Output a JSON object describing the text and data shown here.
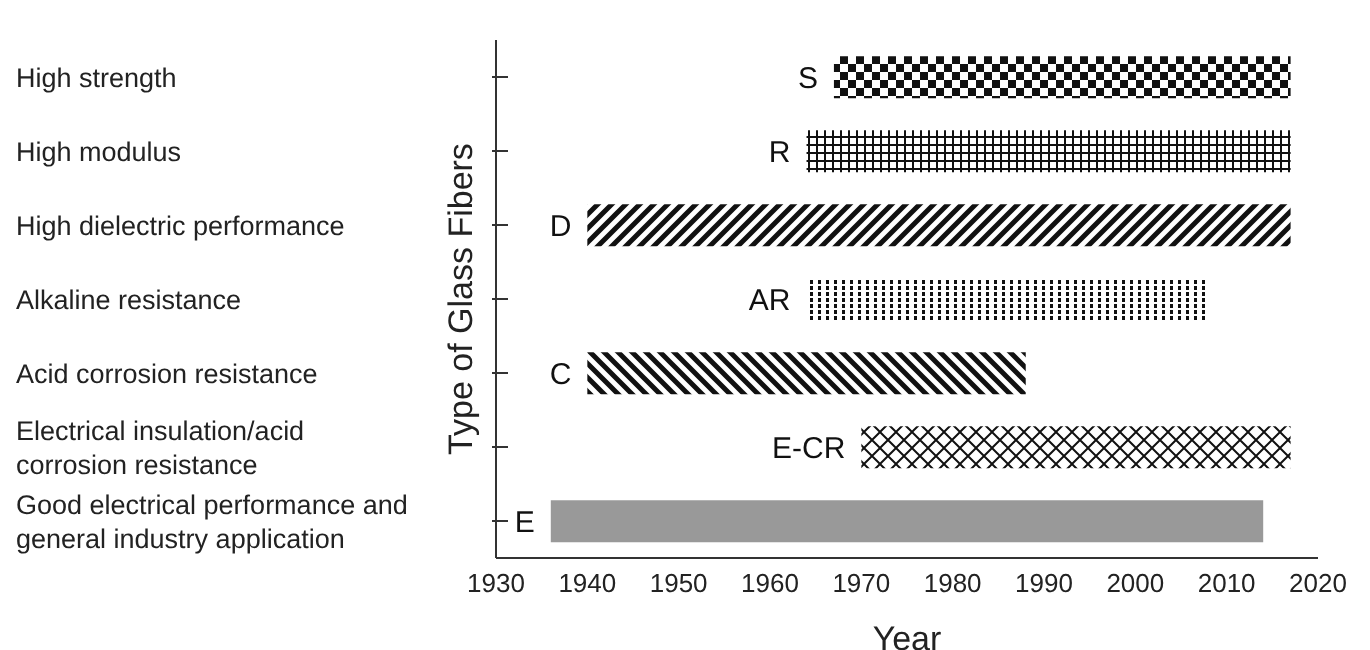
{
  "chart_data": {
    "type": "bar",
    "orientation": "horizontal",
    "xlabel": "Year",
    "ylabel": "Type of Glass Fibers",
    "categories": [
      "High strength",
      "High modulus",
      "High dielectric performance",
      "Alkaline resistance",
      "Acid corrosion resistance",
      "Electrical insulation/acid corrosion resistance",
      "Good electrical performance and general industry application"
    ],
    "base": [
      1967,
      1964,
      1940,
      1964,
      1940,
      1970,
      1936
    ],
    "values": [
      50,
      53,
      77,
      44,
      48,
      47,
      78
    ],
    "colors": [
      "#111111",
      "#111111",
      "#111111",
      "#111111",
      "#111111",
      "#111111",
      "#999999"
    ],
    "xlim": [
      1930,
      2020
    ],
    "xticks": [
      1930,
      1940,
      1950,
      1960,
      1970,
      1980,
      1990,
      2000,
      2010,
      2020
    ],
    "annotations": [
      {
        "text": "S",
        "x": 1967,
        "y": "High strength"
      },
      {
        "text": "R",
        "x": 1964,
        "y": "High modulus"
      },
      {
        "text": "D",
        "x": 1940,
        "y": "High dielectric performance"
      },
      {
        "text": "AR",
        "x": 1964,
        "y": "Alkaline resistance"
      },
      {
        "text": "C",
        "x": 1940,
        "y": "Acid corrosion resistance"
      },
      {
        "text": "E-CR",
        "x": 1970,
        "y": "Electrical insulation/acid corrosion resistance"
      },
      {
        "text": "E",
        "x": 1936,
        "y": "Good electrical performance and general industry application"
      }
    ],
    "grid": false,
    "legend": false
  }
}
